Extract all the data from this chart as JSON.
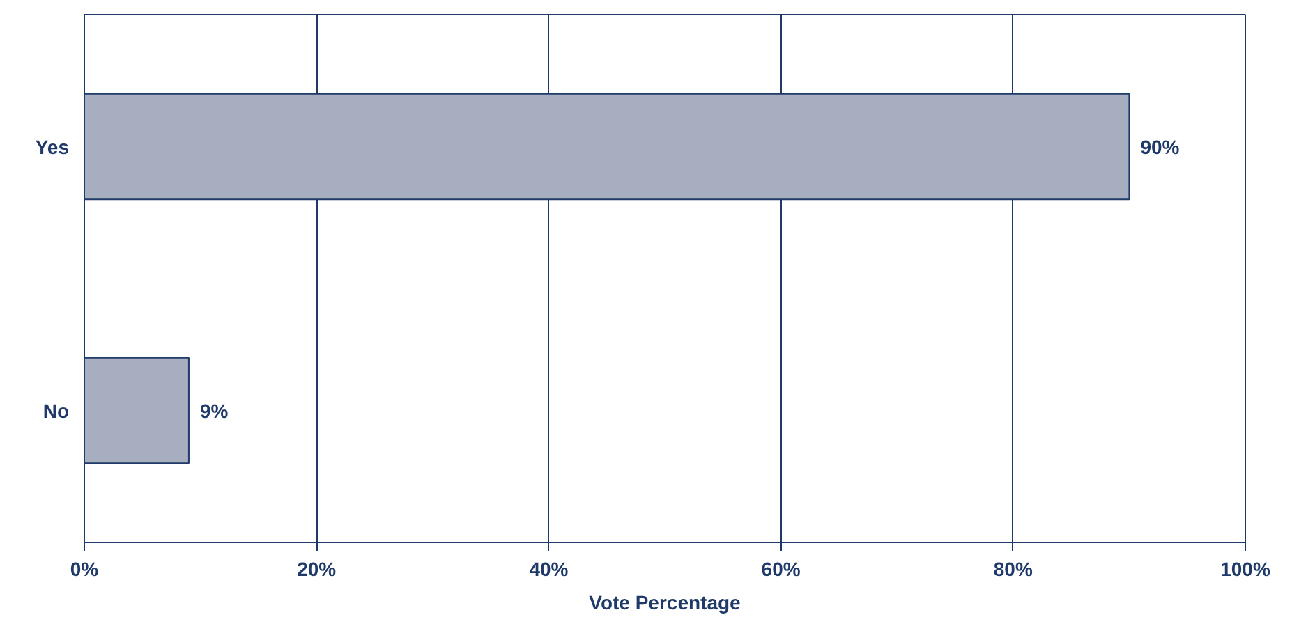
{
  "chart_data": {
    "type": "bar",
    "orientation": "horizontal",
    "xlabel": "Vote Percentage",
    "categories": [
      "Yes",
      "No"
    ],
    "values": [
      90,
      9
    ],
    "value_labels": [
      "90%",
      "9%"
    ],
    "color": "#a6aebf",
    "xlim": [
      0,
      100
    ],
    "xticks": [
      {
        "value": 0,
        "label": "0%"
      },
      {
        "value": 20,
        "label": "20%"
      },
      {
        "value": 40,
        "label": "40%"
      },
      {
        "value": 60,
        "label": "60%"
      },
      {
        "value": 80,
        "label": "80%"
      },
      {
        "value": 100,
        "label": "100%"
      }
    ],
    "grid": "x"
  }
}
